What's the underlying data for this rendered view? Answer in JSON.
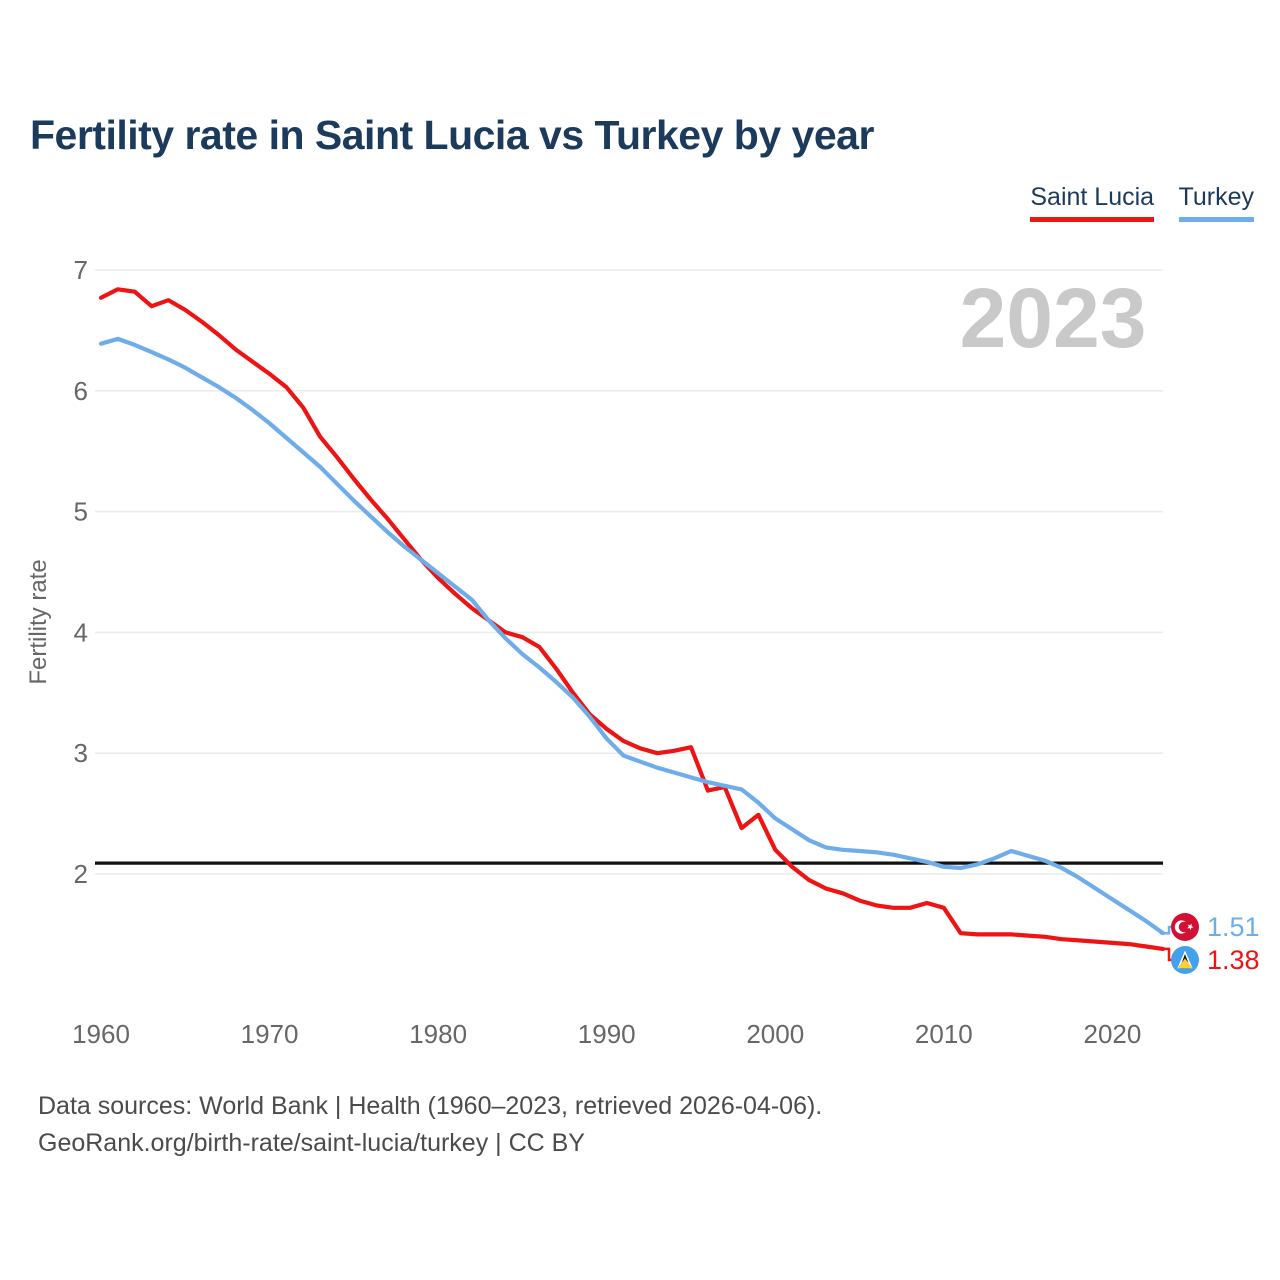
{
  "header": {
    "title": "Fertility rate in Saint Lucia vs Turkey by year"
  },
  "legend": [
    {
      "label": "Saint Lucia",
      "color": "#ee1414"
    },
    {
      "label": "Turkey",
      "color": "#6fadea"
    }
  ],
  "chart_data": {
    "type": "line",
    "title": "Fertility rate in Saint Lucia vs Turkey by year",
    "xlabel": "",
    "ylabel": "Fertility rate",
    "watermark": "2023",
    "x_start": 1960,
    "x_end": 2023,
    "x_ticks": [
      1960,
      1970,
      1980,
      1990,
      2000,
      2010,
      2020
    ],
    "y_ticks": [
      2,
      3,
      4,
      5,
      6,
      7
    ],
    "ylim": [
      1.3,
      7
    ],
    "grid": true,
    "legend_position": "top-right",
    "reference_line": {
      "value": 2.09,
      "color": "#111111"
    },
    "series": [
      {
        "name": "Saint Lucia",
        "slug": "saint-lucia",
        "color": "#ee1414",
        "flag": "saint-lucia",
        "end_label": "1.38",
        "badge_offset": "below",
        "values": [
          6.77,
          6.84,
          6.82,
          6.7,
          6.75,
          6.67,
          6.57,
          6.46,
          6.34,
          6.24,
          6.14,
          6.03,
          5.86,
          5.62,
          5.45,
          5.27,
          5.1,
          4.94,
          4.77,
          4.6,
          4.45,
          4.32,
          4.2,
          4.1,
          4.0,
          3.96,
          3.88,
          3.7,
          3.5,
          3.32,
          3.2,
          3.1,
          3.04,
          3.0,
          3.02,
          3.05,
          2.69,
          2.72,
          2.38,
          2.49,
          2.2,
          2.06,
          1.95,
          1.88,
          1.84,
          1.78,
          1.74,
          1.72,
          1.72,
          1.76,
          1.72,
          1.51,
          1.5,
          1.5,
          1.5,
          1.49,
          1.48,
          1.46,
          1.45,
          1.44,
          1.43,
          1.42,
          1.4,
          1.38
        ]
      },
      {
        "name": "Turkey",
        "slug": "turkey",
        "color": "#6fadea",
        "flag": "turkey",
        "end_label": "1.51",
        "badge_offset": "above",
        "values": [
          6.39,
          6.43,
          6.38,
          6.32,
          6.26,
          6.19,
          6.11,
          6.03,
          5.94,
          5.84,
          5.73,
          5.61,
          5.49,
          5.37,
          5.23,
          5.09,
          4.96,
          4.83,
          4.71,
          4.6,
          4.49,
          4.38,
          4.27,
          4.1,
          3.95,
          3.82,
          3.71,
          3.59,
          3.46,
          3.3,
          3.12,
          2.98,
          2.93,
          2.88,
          2.84,
          2.8,
          2.76,
          2.73,
          2.7,
          2.59,
          2.46,
          2.37,
          2.28,
          2.22,
          2.2,
          2.19,
          2.18,
          2.16,
          2.13,
          2.1,
          2.06,
          2.05,
          2.08,
          2.13,
          2.19,
          2.15,
          2.11,
          2.05,
          1.97,
          1.88,
          1.79,
          1.7,
          1.61,
          1.51
        ]
      }
    ],
    "flag_colors": {
      "turkey_red": "#d21034",
      "saint_lucia_blue": "#42a1e8",
      "saint_lucia_gold": "#fcd034",
      "saint_lucia_black": "#1a1a1a",
      "white": "#ffffff"
    },
    "style": {
      "grid_color": "#ececec",
      "tick_color": "#676767",
      "watermark_color": "#c9c9c9"
    }
  },
  "footer": {
    "line1": "Data sources: World Bank | Health (1960–2023, retrieved 2026-04-06).",
    "line2": "GeoRank.org/birth-rate/saint-lucia/turkey | CC BY"
  }
}
